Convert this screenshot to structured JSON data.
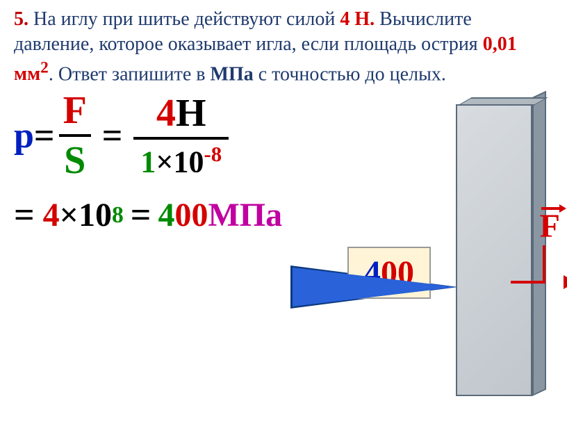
{
  "problem": {
    "number": "5.",
    "text_before_force": " На иглу при шитье действуют силой ",
    "force_value": "4 Н.",
    "text_middle": " Вычислите давление, которое оказывает игла, если площадь острия ",
    "area_value": "0,01 мм",
    "area_exp": "2",
    "text_after_area": ". Ответ запишите в ",
    "unit": "МПа",
    "text_end": " с точностью до целых."
  },
  "formula": {
    "p": "p",
    "eq": "=",
    "F": "F",
    "S": "S",
    "num_4": "4",
    "num_H": "Н",
    "den_1": "1",
    "times": "×10",
    "exp_neg8": "-8",
    "result_4": "4",
    "times2": "×10",
    "exp_8": "8",
    "ans_4": "4",
    "ans_00": "00",
    "ans_unit": "МПа"
  },
  "diagram": {
    "force_label": "F"
  },
  "answer": {
    "four": "4",
    "zeros": "00"
  },
  "colors": {
    "number_red": "#c00000",
    "text_navy": "#1f3a6e",
    "value_red": "#d40000",
    "blue": "#0020c0",
    "green": "#008a00",
    "black": "#000000",
    "magenta": "#c000a0",
    "needle_blue": "#2962d9",
    "answer_bg": "#fff4d6"
  }
}
